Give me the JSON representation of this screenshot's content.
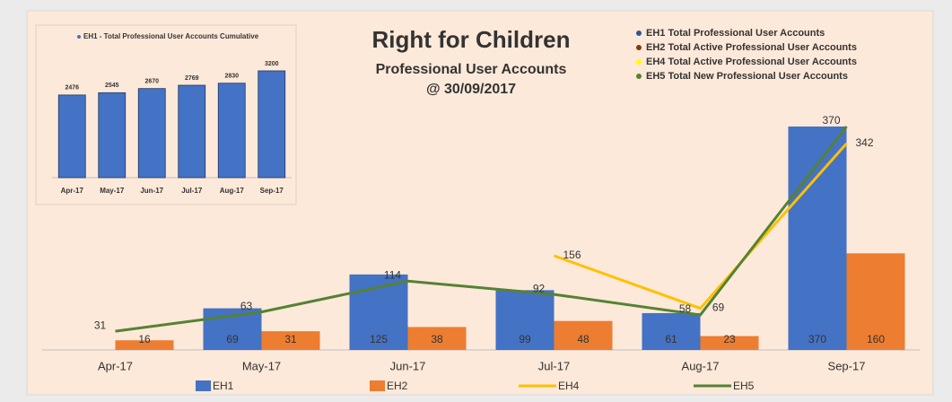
{
  "chart_data": [
    {
      "type": "combo",
      "title": "Right for Children",
      "subtitle": [
        "Professional User Accounts",
        "@ 30/09/2017"
      ],
      "annotations": [
        {
          "text": "EH1 Total Professional User Accounts",
          "color": "#2f5597"
        },
        {
          "text": "EH2 Total Active Professional User Accounts",
          "color": "#843c0c"
        },
        {
          "text": "EH4 Total Active Professional User Accounts",
          "color": "#ffff00"
        },
        {
          "text": "EH5 Total New Professional User Accounts",
          "color": "#548235"
        }
      ],
      "categories": [
        "Apr-17",
        "May-17",
        "Jun-17",
        "Jul-17",
        "Aug-17",
        "Sep-17"
      ],
      "ylim": [
        0,
        400
      ],
      "series": [
        {
          "name": "EH1",
          "type": "bar",
          "color": "#4472c4",
          "values": [
            null,
            69,
            125,
            99,
            61,
            370
          ]
        },
        {
          "name": "EH2",
          "type": "bar",
          "color": "#ed7d31",
          "values": [
            16,
            31,
            38,
            48,
            23,
            160
          ]
        },
        {
          "name": "EH4",
          "type": "line",
          "color": "#ffc000",
          "values": [
            null,
            null,
            null,
            156,
            69,
            342
          ]
        },
        {
          "name": "EH5",
          "type": "line",
          "color": "#548235",
          "values": [
            31,
            63,
            114,
            92,
            58,
            370
          ]
        }
      ]
    },
    {
      "type": "bar",
      "categories": [
        "Apr-17",
        "May-17",
        "Jun-17",
        "Jul-17",
        "Aug-17",
        "Sep-17"
      ],
      "ylim": [
        0,
        3500
      ],
      "series": [
        {
          "name": "EH1 - Total Professional User Accounts Cumulative",
          "color": "#4472c4",
          "values": [
            2476,
            2545,
            2670,
            2769,
            2830,
            3200
          ]
        }
      ]
    }
  ]
}
